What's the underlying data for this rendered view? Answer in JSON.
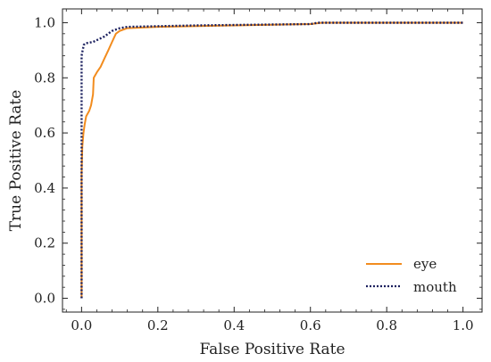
{
  "chart_data": {
    "type": "line",
    "xlabel": "False Positive Rate",
    "ylabel": "True Positive Rate",
    "xlim": [
      -0.05,
      1.05
    ],
    "ylim": [
      -0.05,
      1.05
    ],
    "xticks": [
      "0.0",
      "0.2",
      "0.4",
      "0.6",
      "0.8",
      "1.0"
    ],
    "yticks": [
      "0.0",
      "0.2",
      "0.4",
      "0.6",
      "0.8",
      "1.0"
    ],
    "legend_position": "bottom-right",
    "grid": false,
    "series": [
      {
        "name": "eye",
        "color": "#f28c1e",
        "style": "solid",
        "points": [
          [
            0.0,
            0.0
          ],
          [
            0.0,
            0.45
          ],
          [
            0.002,
            0.55
          ],
          [
            0.005,
            0.6
          ],
          [
            0.008,
            0.63
          ],
          [
            0.012,
            0.66
          ],
          [
            0.02,
            0.68
          ],
          [
            0.025,
            0.7
          ],
          [
            0.03,
            0.74
          ],
          [
            0.032,
            0.8
          ],
          [
            0.04,
            0.82
          ],
          [
            0.05,
            0.84
          ],
          [
            0.06,
            0.87
          ],
          [
            0.07,
            0.9
          ],
          [
            0.08,
            0.93
          ],
          [
            0.09,
            0.96
          ],
          [
            0.1,
            0.97
          ],
          [
            0.12,
            0.98
          ],
          [
            0.2,
            0.985
          ],
          [
            0.4,
            0.99
          ],
          [
            0.6,
            0.995
          ],
          [
            0.63,
            1.0
          ],
          [
            1.0,
            1.0
          ]
        ]
      },
      {
        "name": "mouth",
        "color": "#1a1f5e",
        "style": "dotted",
        "points": [
          [
            0.0,
            0.0
          ],
          [
            0.0,
            0.88
          ],
          [
            0.003,
            0.9
          ],
          [
            0.006,
            0.92
          ],
          [
            0.01,
            0.925
          ],
          [
            0.03,
            0.93
          ],
          [
            0.06,
            0.95
          ],
          [
            0.08,
            0.97
          ],
          [
            0.1,
            0.98
          ],
          [
            0.12,
            0.985
          ],
          [
            0.3,
            0.99
          ],
          [
            0.6,
            0.995
          ],
          [
            0.62,
            1.0
          ],
          [
            1.0,
            1.0
          ]
        ]
      }
    ]
  }
}
